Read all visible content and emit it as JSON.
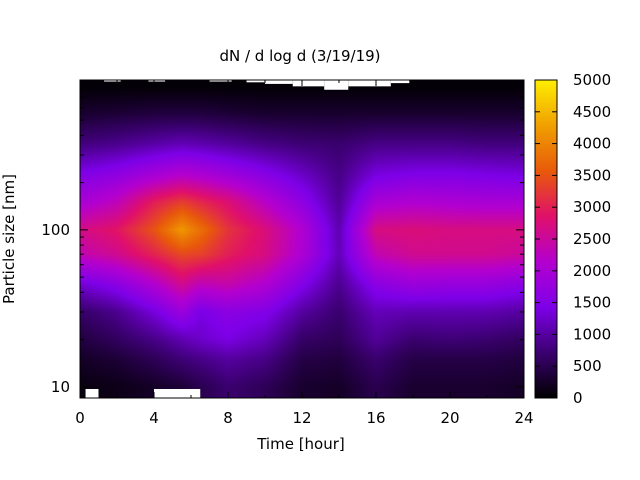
{
  "chart_data": {
    "type": "heatmap",
    "title": "dN / d log d (3/19/19)",
    "xlabel": "Time [hour]",
    "ylabel": "Particle size [nm]",
    "xlim": [
      0,
      24
    ],
    "x_ticks": [
      "0",
      "4",
      "8",
      "12",
      "16",
      "20",
      "24"
    ],
    "y_scale": "log",
    "ylim": [
      8.5,
      900
    ],
    "y_ticks": [
      "10",
      "100"
    ],
    "colorbar": {
      "range": [
        0,
        5000
      ],
      "ticks": [
        "0",
        "500",
        "1000",
        "1500",
        "2000",
        "2500",
        "3000",
        "3500",
        "4000",
        "4500",
        "5000"
      ],
      "colormap": [
        "#000000",
        "#3b0070",
        "#7e00e8",
        "#b400cf",
        "#e0106a",
        "#e85a0a",
        "#f0a000",
        "#ffee00"
      ]
    },
    "time_hours": [
      0,
      2,
      4,
      5.5,
      6.5,
      8,
      10,
      12,
      14,
      16,
      18,
      20,
      22,
      24
    ],
    "size_nm": [
      10,
      15,
      20,
      30,
      45,
      70,
      100,
      150,
      220,
      350,
      550,
      800
    ],
    "values": [
      [
        100,
        150,
        250,
        350,
        500,
        700,
        550,
        300,
        250,
        500,
        300,
        300,
        300,
        250
      ],
      [
        250,
        350,
        550,
        750,
        850,
        1000,
        850,
        450,
        400,
        700,
        450,
        450,
        450,
        400
      ],
      [
        400,
        600,
        850,
        1100,
        1250,
        1400,
        1150,
        650,
        550,
        950,
        700,
        750,
        700,
        600
      ],
      [
        650,
        900,
        1350,
        1800,
        1400,
        1600,
        1500,
        1000,
        700,
        1150,
        1100,
        1100,
        1100,
        1000
      ],
      [
        1300,
        1600,
        2100,
        2600,
        2300,
        2400,
        2100,
        1500,
        900,
        1600,
        1800,
        1750,
        1750,
        1600
      ],
      [
        2350,
        2600,
        3050,
        3400,
        3350,
        3000,
        2700,
        2050,
        1150,
        2350,
        2600,
        2600,
        2600,
        2500
      ],
      [
        2650,
        2900,
        3500,
        4200,
        3800,
        3200,
        2750,
        2100,
        1100,
        2700,
        2750,
        2700,
        2700,
        2700
      ],
      [
        2000,
        2300,
        3000,
        3300,
        3100,
        2800,
        2200,
        1650,
        950,
        2000,
        2100,
        2050,
        2000,
        2000
      ],
      [
        1500,
        1700,
        2000,
        2200,
        2100,
        1900,
        1600,
        1250,
        850,
        1400,
        1500,
        1500,
        1450,
        1400
      ],
      [
        800,
        900,
        1050,
        1150,
        1100,
        1000,
        850,
        750,
        700,
        850,
        850,
        850,
        800,
        800
      ],
      [
        300,
        350,
        400,
        400,
        400,
        350,
        300,
        300,
        300,
        300,
        300,
        300,
        300,
        300
      ],
      [
        50,
        50,
        50,
        50,
        50,
        50,
        50,
        50,
        50,
        50,
        50,
        50,
        50,
        50
      ]
    ]
  }
}
